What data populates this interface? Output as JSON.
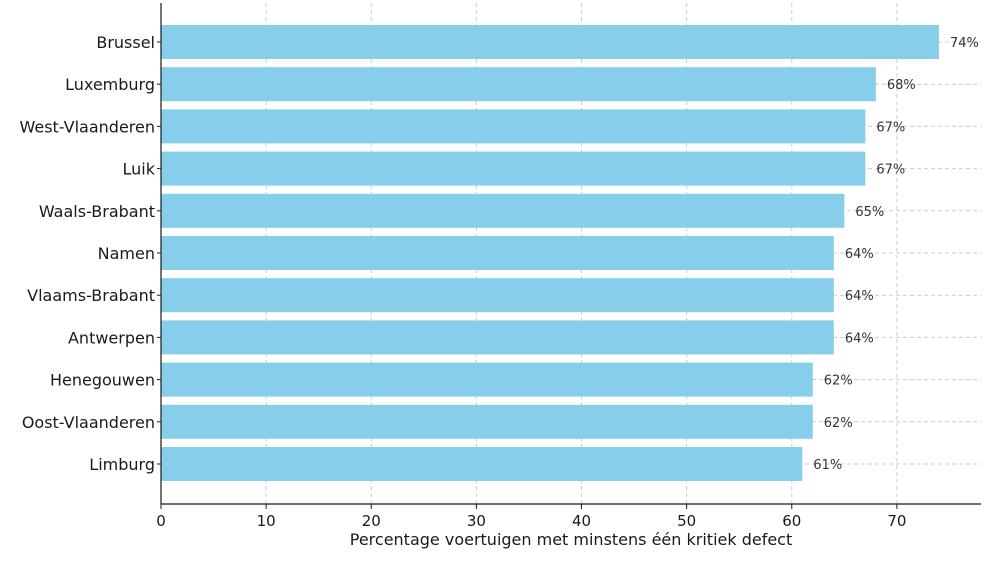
{
  "chart_data": {
    "type": "bar",
    "orientation": "horizontal",
    "categories": [
      "Brussel",
      "Luxemburg",
      "West-Vlaanderen",
      "Luik",
      "Waals-Brabant",
      "Namen",
      "Vlaams-Brabant",
      "Antwerpen",
      "Henegouwen",
      "Oost-Vlaanderen",
      "Limburg"
    ],
    "values": [
      74,
      68,
      67,
      67,
      65,
      64,
      64,
      64,
      62,
      62,
      61
    ],
    "data_labels": [
      "74%",
      "68%",
      "67%",
      "67%",
      "65%",
      "64%",
      "64%",
      "64%",
      "62%",
      "62%",
      "61%"
    ],
    "xlabel": "Percentage voertuigen met minstens één kritiek defect",
    "ylabel": "",
    "title": "",
    "xlim": [
      0,
      78
    ],
    "xticks": [
      0,
      10,
      20,
      30,
      40,
      50,
      60,
      70
    ],
    "grid": "x-dashed",
    "bar_color": "#87CEEB",
    "grid_color": "#cccccc",
    "axis_color": "#1a1a1a"
  }
}
